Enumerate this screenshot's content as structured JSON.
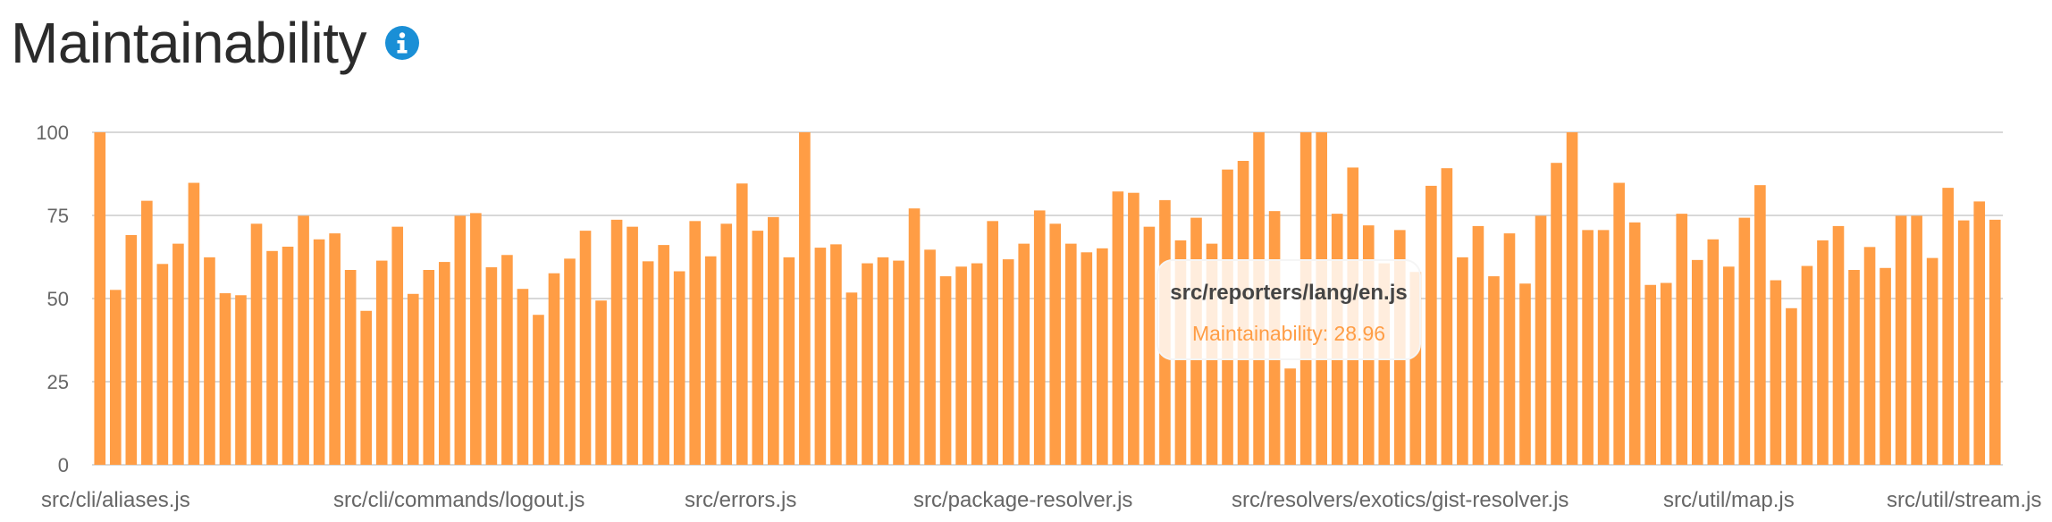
{
  "header": {
    "title": "Maintainability",
    "info_icon": "info-circle-icon"
  },
  "colors": {
    "bar": "#ff9d45",
    "info_icon": "#1a8fd6",
    "grid": "#cccccc",
    "axis_text": "#666666"
  },
  "tooltip": {
    "file": "src/reporters/lang/en.js",
    "label": "Maintainability",
    "value": "28.96",
    "text": "Maintainability: 28.96"
  },
  "chart_data": {
    "type": "bar",
    "title": "Maintainability",
    "ylim": [
      0,
      100
    ],
    "yticks": [
      0,
      25,
      50,
      75,
      100
    ],
    "grid": true,
    "x_tick_labels": [
      "src/cli/aliases.js",
      "src/cli/commands/logout.js",
      "src/errors.js",
      "src/package-resolver.js",
      "src/resolvers/exotics/gist-resolver.js",
      "src/util/map.js",
      "src/util/stream.js"
    ],
    "values": [
      100,
      52.6,
      69.1,
      79.4,
      60.4,
      66.5,
      84.8,
      62.4,
      51.6,
      51.0,
      72.5,
      64.3,
      65.6,
      74.9,
      67.8,
      69.6,
      58.6,
      46.3,
      61.4,
      71.6,
      51.4,
      58.6,
      61.0,
      74.9,
      75.7,
      59.4,
      63.1,
      52.9,
      45.1,
      57.6,
      62.0,
      70.4,
      49.4,
      73.7,
      71.6,
      61.2,
      66.1,
      58.2,
      73.3,
      62.7,
      72.5,
      84.6,
      70.4,
      74.5,
      62.4,
      100,
      65.3,
      66.3,
      51.8,
      60.6,
      62.4,
      61.4,
      77.1,
      64.7,
      56.7,
      59.6,
      60.6,
      73.3,
      61.8,
      66.5,
      76.5,
      72.5,
      66.5,
      63.9,
      65.1,
      82.2,
      81.8,
      71.6,
      79.6,
      67.5,
      74.3,
      66.5,
      88.8,
      91.4,
      100,
      76.3,
      28.96,
      100,
      100,
      75.5,
      89.4,
      72.0,
      60.6,
      70.6,
      58.0,
      83.9,
      89.2,
      62.4,
      71.8,
      56.7,
      69.6,
      54.5,
      74.9,
      90.8,
      100,
      70.6,
      70.6,
      84.8,
      72.9,
      54.1,
      54.7,
      75.5,
      61.6,
      67.8,
      59.6,
      74.3,
      84.1,
      55.5,
      47.1,
      59.8,
      67.5,
      71.8,
      58.6,
      65.5,
      59.2,
      74.9,
      74.9,
      62.2,
      83.3,
      73.5,
      79.2,
      73.7
    ]
  }
}
